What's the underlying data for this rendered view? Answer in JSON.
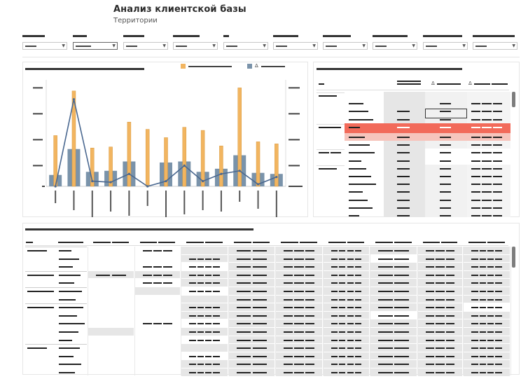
{
  "header": {
    "title": "Анализ клиентской базы",
    "subtitle": "Территории"
  },
  "colors": {
    "bar_orange": "#f2b560",
    "bar_blue": "#7a93aa",
    "line": "#4a6890",
    "highlight_strong": "#f26a5a",
    "highlight_soft": "#f6c5bd",
    "cell_grey": "#e6e6e6",
    "scrollbar": "#7d7d7d"
  },
  "legend": {
    "delta_glyph": "Δ"
  },
  "table_headers": {
    "delta_glyph": "Δ"
  },
  "chart_data": {
    "type": "bar",
    "categories_count": 13,
    "series": [
      {
        "values": [
          49,
          92,
          37,
          38,
          62,
          55,
          47,
          57,
          54,
          39,
          95,
          43,
          41
        ]
      },
      {
        "values": [
          11,
          36,
          14,
          15,
          24,
          0,
          23,
          24,
          14,
          17,
          30,
          13,
          12
        ]
      },
      {
        "values": [
          0,
          84,
          5,
          4,
          12,
          0,
          5,
          20,
          5,
          12,
          15,
          2,
          9
        ]
      }
    ],
    "ylim": [
      0,
      100
    ]
  }
}
